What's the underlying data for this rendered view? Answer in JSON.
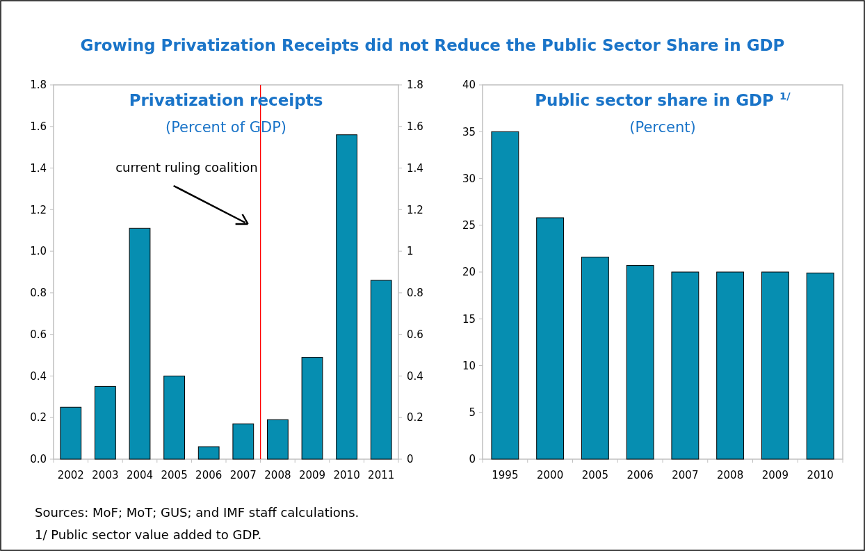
{
  "chart_data": [
    {
      "type": "bar",
      "title": "Privatization receipts",
      "subtitle": "(Percent of GDP)",
      "categories": [
        "2002",
        "2003",
        "2004",
        "2005",
        "2006",
        "2007",
        "2008",
        "2009",
        "2010",
        "2011"
      ],
      "values": [
        0.25,
        0.35,
        1.11,
        0.4,
        0.06,
        0.17,
        0.19,
        0.49,
        1.56,
        0.86
      ],
      "color": "#068eb1",
      "ylim": [
        0,
        1.8
      ],
      "yticks": [
        {
          "value": 0,
          "label": "0.0"
        },
        0.2,
        0.4,
        0.6,
        0.8,
        {
          "value": 1,
          "label": "1.0"
        },
        1.2,
        1.4,
        1.6,
        1.8
      ],
      "y2lim": [
        0,
        1.8
      ],
      "y2ticks": [
        0,
        0.2,
        0.4,
        0.6,
        0.8,
        1,
        1.2,
        1.4,
        1.6,
        1.8
      ],
      "grid": false,
      "ref_lines": [
        {
          "axis": "x",
          "value": "2008",
          "label": "current ruling coalition",
          "color": "#ff0000"
        }
      ],
      "annotations": [
        "Growing Privatization Receipts did not Reduce the Public Sector Share in GDP",
        "Sources: MoF; MoT; GUS; and IMF staff calculations.",
        "1/ Public sector value added to GDP."
      ]
    },
    {
      "type": "bar",
      "title": "Public sector share in GDP $^{1/}$",
      "subtitle": "(Percent)",
      "categories": [
        "1995",
        "2000",
        "2005",
        "2006",
        "2007",
        "2008",
        "2009",
        "2010"
      ],
      "values": [
        35,
        25.8,
        21.6,
        20.7,
        20,
        20,
        20,
        19.9
      ],
      "color": "#068eb1",
      "ylim": [
        0,
        40
      ],
      "yticks": [
        0,
        5,
        10,
        15,
        20,
        25,
        30,
        35,
        40
      ],
      "grid": false
    }
  ]
}
